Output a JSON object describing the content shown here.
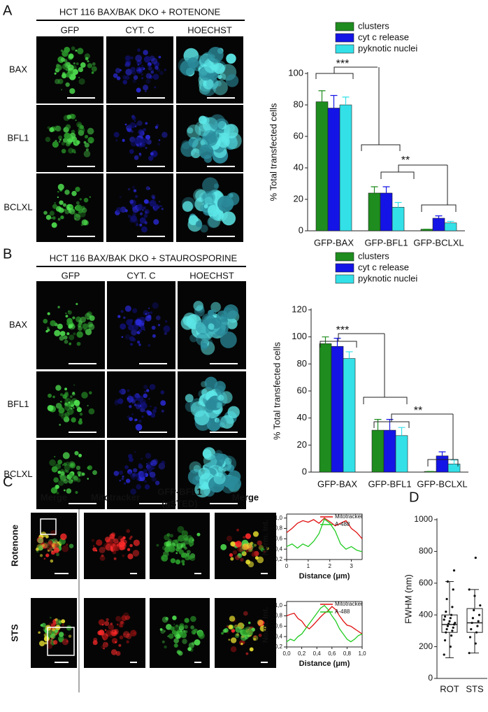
{
  "figure": {
    "panel_letters": [
      "A",
      "B",
      "C",
      "D"
    ],
    "panel_a": {
      "title": "HCT 116 BAX/BAK DKO + ROTENONE",
      "columns": [
        "GFP",
        "CYT. C",
        "HOECHST"
      ],
      "rows": [
        "BAX",
        "BFL1",
        "BCLXL"
      ]
    },
    "panel_b": {
      "title": "HCT 116 BAX/BAK DKO + STAUROSPORINE",
      "columns": [
        "GFP",
        "CYT. C",
        "HOECHST"
      ],
      "rows": [
        "BAX",
        "BFL1",
        "BCLXL"
      ]
    },
    "panel_c": {
      "columns": [
        "Merge",
        "Mitotracker",
        "GFP-BFL1",
        "(gSTED)",
        "Merge"
      ],
      "rows": [
        "Rotenone",
        "STS"
      ]
    }
  },
  "chart_data": [
    {
      "type": "bar",
      "y_label": "% Total transfected cells",
      "categories": [
        "GFP-BAX",
        "GFP-BFL1",
        "GFP-BCLXL"
      ],
      "series": [
        {
          "name": "clusters",
          "color": "#1e8c1e",
          "values": [
            82,
            24,
            1
          ],
          "errors": [
            7,
            4,
            0
          ]
        },
        {
          "name": "cyt c release",
          "color": "#1414e6",
          "values": [
            78,
            24,
            8
          ],
          "errors": [
            8,
            4,
            1.5
          ]
        },
        {
          "name": "pyknotic nuclei",
          "color": "#33e0e8",
          "values": [
            80,
            15,
            5
          ],
          "errors": [
            5,
            3,
            1
          ]
        }
      ],
      "ylim": [
        0,
        100
      ],
      "yticks": [
        0,
        20,
        40,
        60,
        80,
        100
      ],
      "annotations": [
        "***",
        "**"
      ]
    },
    {
      "type": "bar",
      "y_label": "% Total transfected cells",
      "categories": [
        "GFP-BAX",
        "GFP-BFL1",
        "GFP-BCLXL"
      ],
      "series": [
        {
          "name": "clusters",
          "color": "#1e8c1e",
          "values": [
            95,
            31,
            0.5
          ],
          "errors": [
            5,
            8,
            0
          ]
        },
        {
          "name": "cyt c release",
          "color": "#1414e6",
          "values": [
            93,
            31,
            12
          ],
          "errors": [
            6,
            8,
            3
          ]
        },
        {
          "name": "pyknotic nuclei",
          "color": "#33e0e8",
          "values": [
            84,
            27,
            6
          ],
          "errors": [
            5,
            6,
            3
          ]
        }
      ],
      "ylim": [
        0,
        120
      ],
      "yticks": [
        0,
        20,
        40,
        60,
        80,
        100,
        120
      ],
      "annotations": [
        "***",
        "**"
      ]
    },
    {
      "type": "line",
      "x_label": "Distance (μm)",
      "y_label": "Norm. Int.",
      "x": [
        0,
        0.25,
        0.5,
        0.75,
        1,
        1.25,
        1.5,
        1.75,
        2,
        2.25,
        2.5,
        2.75,
        3,
        3.25,
        3.5
      ],
      "series": [
        {
          "name": "Mitotracker",
          "color": "#e01010",
          "values": [
            0.72,
            0.8,
            0.9,
            0.95,
            0.92,
            0.97,
            0.9,
            1.0,
            0.93,
            0.85,
            0.9,
            0.95,
            0.8,
            0.72,
            0.6
          ]
        },
        {
          "name": "A-488",
          "color": "#22cc22",
          "values": [
            0.45,
            0.5,
            0.42,
            0.5,
            0.45,
            0.55,
            0.7,
            0.98,
            0.9,
            0.75,
            0.5,
            0.4,
            0.45,
            0.38,
            0.35
          ]
        }
      ],
      "xlim": [
        0,
        3.5
      ],
      "xticks": [
        0,
        1,
        2,
        3
      ],
      "ylim": [
        0.2,
        1.05
      ],
      "yticks": [
        {
          "value": 0.2,
          "label": "0,2"
        },
        {
          "value": 0.4,
          "label": "0,4"
        },
        {
          "value": 0.6,
          "label": "0,6"
        },
        {
          "value": 0.8,
          "label": "0,8"
        },
        {
          "value": 1.0,
          "label": "1,0"
        }
      ]
    },
    {
      "type": "line",
      "x_label": "Distance (μm)",
      "y_label": "Norm. Int.",
      "x": [
        0,
        0.05,
        0.1,
        0.15,
        0.2,
        0.25,
        0.3,
        0.35,
        0.4,
        0.45,
        0.5,
        0.55,
        0.6,
        0.65,
        0.7,
        0.75,
        0.8,
        0.85,
        0.9,
        0.95,
        1.0
      ],
      "series": [
        {
          "name": "Mitotracker",
          "color": "#e01010",
          "values": [
            0.8,
            0.83,
            0.85,
            0.75,
            0.7,
            0.6,
            0.55,
            0.62,
            0.7,
            0.78,
            0.85,
            0.9,
            0.98,
            0.92,
            0.8,
            0.7,
            0.62,
            0.6,
            0.55,
            0.5,
            0.45
          ]
        },
        {
          "name": "A-488",
          "color": "#22cc22",
          "values": [
            0.3,
            0.35,
            0.32,
            0.4,
            0.45,
            0.55,
            0.65,
            0.75,
            0.85,
            0.95,
            1.0,
            0.92,
            0.8,
            0.7,
            0.55,
            0.45,
            0.35,
            0.3,
            0.35,
            0.42,
            0.45
          ]
        }
      ],
      "xlim": [
        0,
        1.0
      ],
      "xticks": [
        {
          "value": 0,
          "label": "0,0"
        },
        {
          "value": 0.2,
          "label": "0,2"
        },
        {
          "value": 0.4,
          "label": "0,4"
        },
        {
          "value": 0.6,
          "label": "0,6"
        },
        {
          "value": 0.8,
          "label": "0,8"
        },
        {
          "value": 1.0,
          "label": "1,0"
        }
      ],
      "ylim": [
        0.2,
        1.05
      ],
      "yticks": [
        {
          "value": 0.2,
          "label": "0,2"
        },
        {
          "value": 0.4,
          "label": "0,4"
        },
        {
          "value": 0.6,
          "label": "0,6"
        },
        {
          "value": 0.8,
          "label": "0,8"
        },
        {
          "value": 1.0,
          "label": "1,0"
        }
      ]
    },
    {
      "type": "box",
      "y_label": "FWHM (nm)",
      "categories": [
        "ROT",
        "STS"
      ],
      "boxes": [
        {
          "whisker_low": 130,
          "q1": 290,
          "median": 340,
          "q3": 400,
          "whisker_high": 610
        },
        {
          "whisker_low": 160,
          "q1": 290,
          "median": 350,
          "q3": 440,
          "whisker_high": 560
        }
      ],
      "points": [
        [
          150,
          200,
          240,
          270,
          290,
          300,
          310,
          320,
          330,
          340,
          345,
          350,
          360,
          370,
          380,
          390,
          400,
          420,
          450,
          500,
          560,
          610,
          680
        ],
        [
          160,
          220,
          260,
          290,
          310,
          330,
          350,
          360,
          380,
          400,
          430,
          460,
          520,
          560,
          760
        ]
      ],
      "ylim": [
        0,
        1000
      ],
      "yticks": [
        0,
        200,
        400,
        600,
        800,
        1000
      ]
    }
  ]
}
